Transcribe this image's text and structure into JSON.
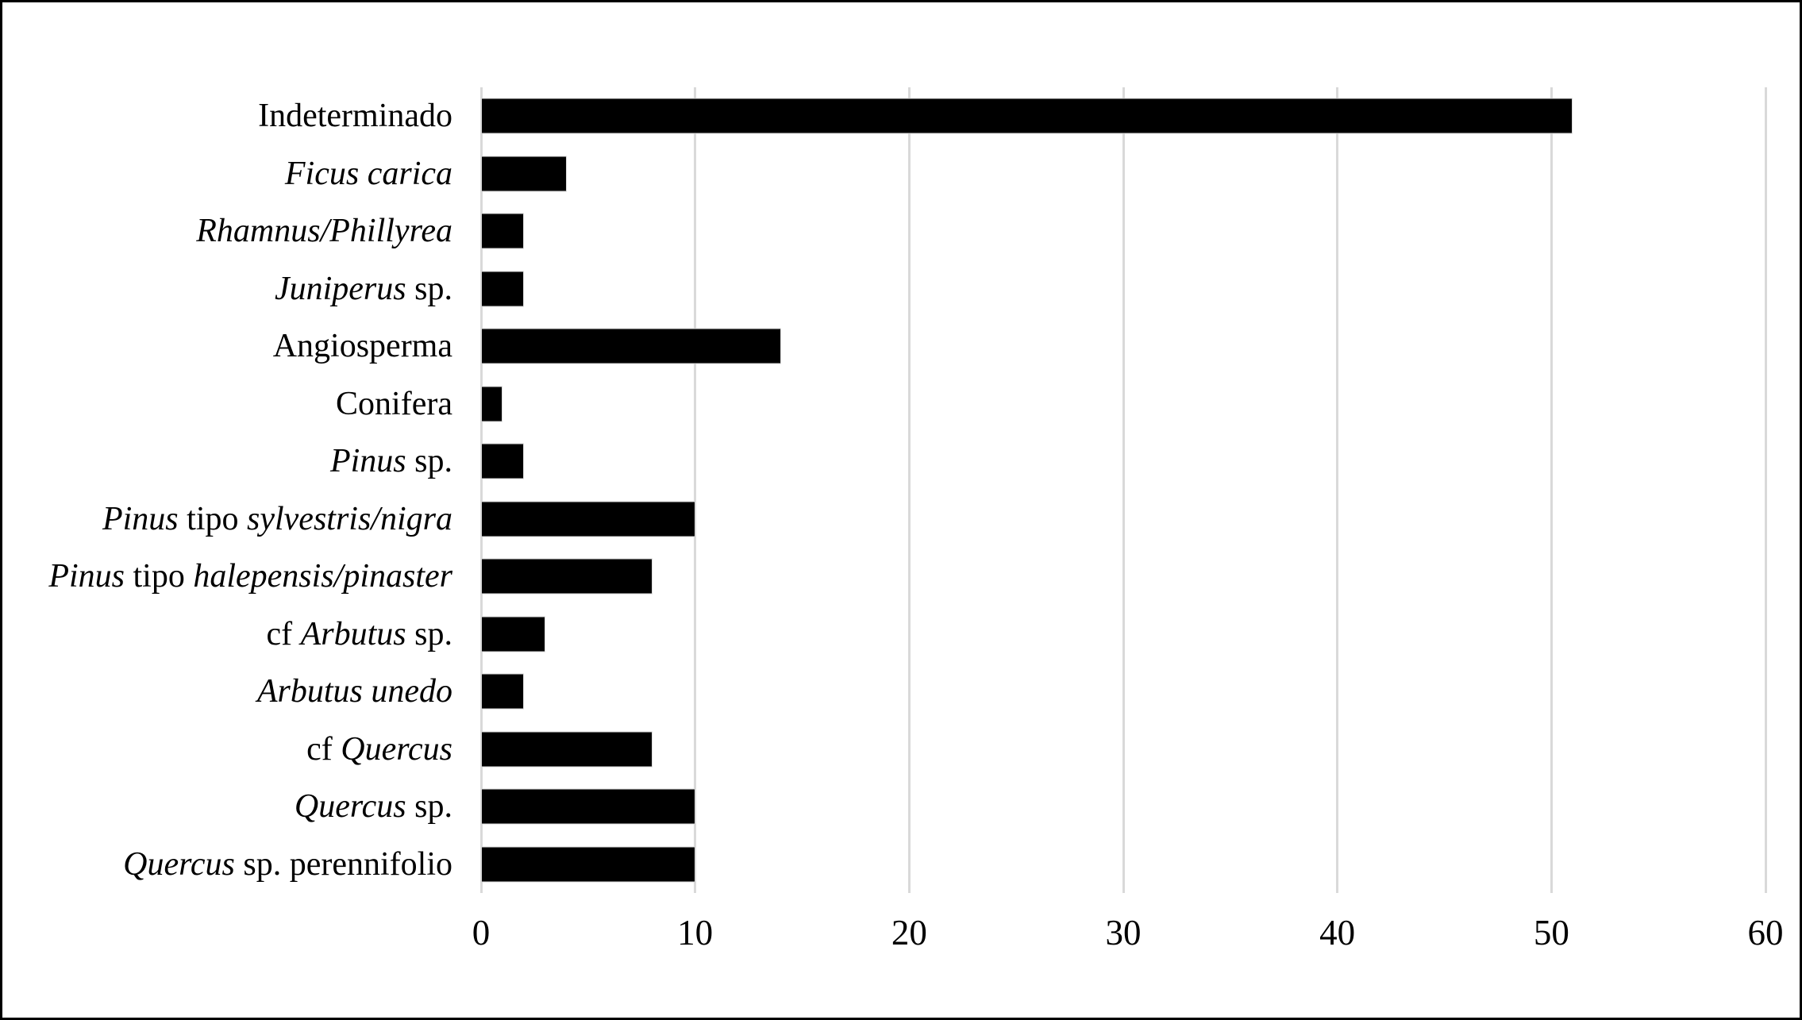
{
  "chart_data": {
    "type": "bar",
    "orientation": "horizontal",
    "title": "",
    "xlabel": "",
    "ylabel": "",
    "xlim": [
      0,
      60
    ],
    "x_ticks": [
      0,
      10,
      20,
      30,
      40,
      50,
      60
    ],
    "x_tick_labels": [
      "0",
      "10",
      "20",
      "30",
      "40",
      "50",
      "60"
    ],
    "grid": "vertical-gridlines-on",
    "legend": "none",
    "colors": {
      "bar": "#000000",
      "gridline": "#d9d9d9",
      "background": "#ffffff",
      "frame_border": "#000000"
    },
    "categories": [
      "Indeterminado",
      "Ficus carica",
      "Rhamnus/Phillyrea",
      "Juniperus sp.",
      "Angiosperma",
      "Conifera",
      "Pinus sp.",
      "Pinus tipo sylvestris/nigra",
      "Pinus tipo halepensis/pinaster",
      "cf Arbutus sp.",
      "Arbutus unedo",
      "cf Quercus",
      "Quercus sp.",
      "Quercus sp. perennifolio"
    ],
    "categories_rich": [
      [
        {
          "text": "Indeterminado",
          "italic": false
        }
      ],
      [
        {
          "text": "Ficus carica",
          "italic": true
        }
      ],
      [
        {
          "text": "Rhamnus/Phillyrea",
          "italic": true
        }
      ],
      [
        {
          "text": "Juniperus",
          "italic": true
        },
        {
          "text": " sp.",
          "italic": false
        }
      ],
      [
        {
          "text": "Angiosperma",
          "italic": false
        }
      ],
      [
        {
          "text": "Conifera",
          "italic": false
        }
      ],
      [
        {
          "text": "Pinus",
          "italic": true
        },
        {
          "text": " sp.",
          "italic": false
        }
      ],
      [
        {
          "text": "Pinus",
          "italic": true
        },
        {
          "text": " tipo ",
          "italic": false
        },
        {
          "text": "sylvestris/nigra",
          "italic": true
        }
      ],
      [
        {
          "text": "Pinus",
          "italic": true
        },
        {
          "text": " tipo ",
          "italic": false
        },
        {
          "text": "halepensis/pinaster",
          "italic": true
        }
      ],
      [
        {
          "text": "cf ",
          "italic": false
        },
        {
          "text": "Arbutus",
          "italic": true
        },
        {
          "text": " sp.",
          "italic": false
        }
      ],
      [
        {
          "text": "Arbutus unedo",
          "italic": true
        }
      ],
      [
        {
          "text": "cf ",
          "italic": false
        },
        {
          "text": "Quercus",
          "italic": true
        }
      ],
      [
        {
          "text": "Quercus",
          "italic": true
        },
        {
          "text": " sp.",
          "italic": false
        }
      ],
      [
        {
          "text": "Quercus",
          "italic": true
        },
        {
          "text": " sp. perennifolio",
          "italic": false
        }
      ]
    ],
    "values": [
      51,
      4,
      2,
      2,
      14,
      1,
      2,
      10,
      8,
      3,
      2,
      8,
      10,
      10
    ]
  }
}
